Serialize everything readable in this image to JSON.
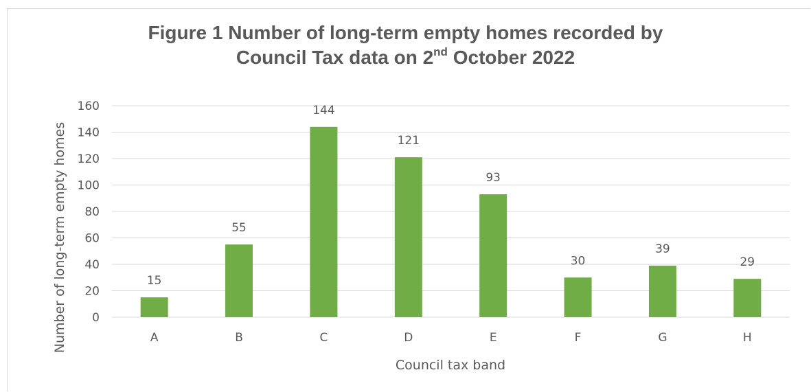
{
  "chart_data": {
    "type": "bar",
    "title_line1": "Figure 1 Number of long-term empty homes recorded by",
    "title_line2_pre": "Council Tax data on 2",
    "title_line2_sup": "nd",
    "title_line2_post": " October 2022",
    "xlabel": "Council tax band",
    "ylabel": "Number of long-term empty homes",
    "categories": [
      "A",
      "B",
      "C",
      "D",
      "E",
      "F",
      "G",
      "H"
    ],
    "values": [
      15,
      55,
      144,
      121,
      93,
      30,
      39,
      29
    ],
    "ylim": [
      0,
      160
    ],
    "yticks": [
      "0",
      "20",
      "40",
      "60",
      "80",
      "100",
      "120",
      "140",
      "160"
    ],
    "grid": true,
    "legend": "none",
    "bar_color": "#70ad47",
    "grid_color": "#d9d9d9"
  }
}
